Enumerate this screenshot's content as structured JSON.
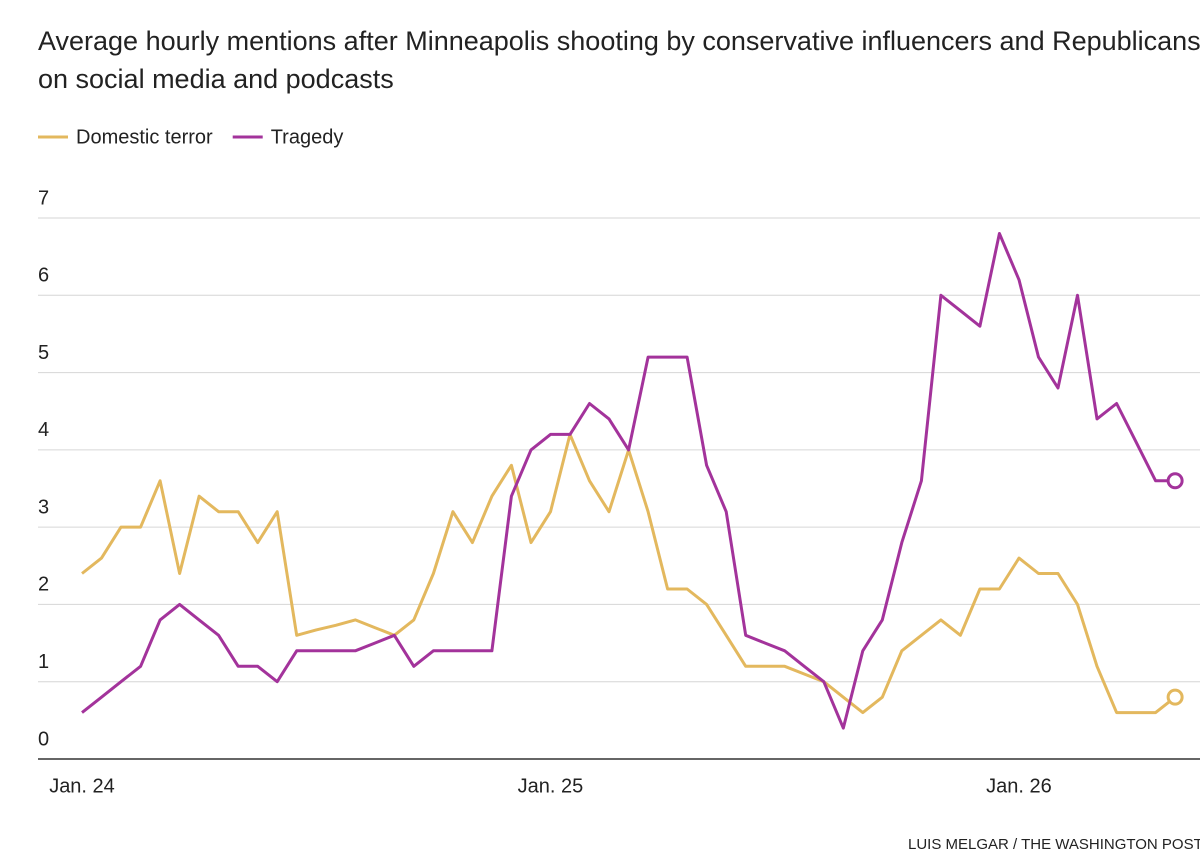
{
  "chart_data": {
    "type": "line",
    "title": "Average hourly mentions after Minneapolis shooting by conservative influencers and Republicans on social media and podcasts",
    "credit": "LUIS MELGAR / THE WASHINGTON POST",
    "categories": [
      "Jan. 24",
      null,
      null,
      null,
      null,
      null,
      null,
      null,
      null,
      null,
      null,
      null,
      null,
      null,
      null,
      null,
      null,
      null,
      null,
      null,
      null,
      null,
      null,
      null,
      "Jan. 25",
      null,
      null,
      null,
      null,
      null,
      null,
      null,
      null,
      null,
      null,
      null,
      null,
      null,
      null,
      null,
      null,
      null,
      null,
      null,
      null,
      null,
      null,
      null,
      "Jan. 26",
      null,
      null,
      null,
      null,
      null,
      null,
      null,
      null
    ],
    "series": [
      {
        "name": "Domestic terror",
        "color": "#e3b85e",
        "values": [
          2.4,
          2.6,
          3.0,
          3.0,
          3.6,
          2.4,
          3.4,
          3.2,
          3.2,
          2.8,
          3.2,
          1.6,
          1.67,
          1.73,
          1.8,
          1.7,
          1.6,
          1.8,
          2.4,
          3.2,
          2.8,
          3.4,
          3.8,
          2.8,
          3.2,
          4.2,
          3.6,
          3.2,
          4.0,
          3.2,
          2.2,
          2.2,
          2.0,
          1.6,
          1.2,
          1.2,
          1.2,
          1.1,
          1.0,
          0.8,
          0.6,
          0.8,
          1.4,
          1.6,
          1.8,
          1.6,
          2.2,
          2.2,
          2.6,
          2.4,
          2.4,
          2.0,
          1.2,
          0.6,
          0.6,
          0.6,
          0.8
        ]
      },
      {
        "name": "Tragedy",
        "color": "#a3339b",
        "values": [
          0.6,
          0.8,
          1.0,
          1.2,
          1.8,
          2.0,
          1.8,
          1.6,
          1.2,
          1.2,
          1.0,
          1.4,
          1.4,
          1.4,
          1.4,
          1.5,
          1.6,
          1.2,
          1.4,
          1.4,
          1.4,
          1.4,
          3.4,
          4.0,
          4.2,
          4.2,
          4.6,
          4.4,
          4.0,
          5.2,
          5.2,
          5.2,
          3.8,
          3.2,
          1.6,
          1.5,
          1.4,
          1.2,
          1.0,
          0.4,
          1.4,
          1.8,
          2.8,
          3.6,
          6.0,
          5.8,
          5.6,
          6.8,
          6.2,
          5.2,
          4.8,
          6.0,
          4.4,
          4.6,
          4.1,
          3.6,
          3.6
        ]
      }
    ],
    "ylim": [
      0,
      7
    ],
    "yticks": [
      0,
      1,
      2,
      3,
      4,
      5,
      6,
      7
    ],
    "grid": true,
    "legend": "top-left"
  }
}
